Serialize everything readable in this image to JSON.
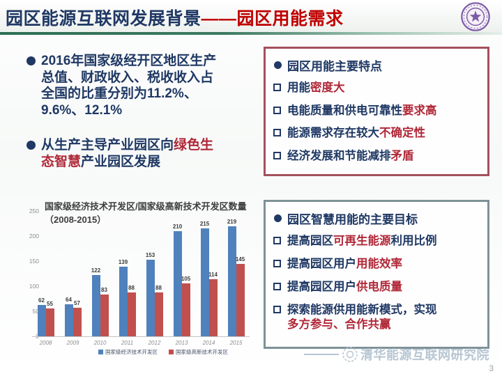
{
  "header": {
    "title_main": "园区能源互联网发展背景",
    "title_dash": "——",
    "title_accent": "园区用能需求",
    "logo_name": "tsinghua-university-seal"
  },
  "left": {
    "bullets": [
      {
        "segments": [
          {
            "text": "2016年国家级经开区地区生产总值、财政收入、税收收入占全国的比重分别为11.2%、9.6%、12.1%",
            "color": "navy"
          }
        ]
      },
      {
        "segments": [
          {
            "text": "从生产主导产业园区向",
            "color": "navy"
          },
          {
            "text": "绿色生态智慧",
            "color": "red"
          },
          {
            "text": "产业园区发展",
            "color": "navy"
          }
        ]
      }
    ]
  },
  "box_top": {
    "title": "园区用能主要特点",
    "items": [
      {
        "segments": [
          {
            "text": "用能",
            "color": "navy"
          },
          {
            "text": "密度大",
            "color": "red"
          }
        ]
      },
      {
        "segments": [
          {
            "text": "电能质量和供电可靠性",
            "color": "navy"
          },
          {
            "text": "要求高",
            "color": "red"
          }
        ]
      },
      {
        "segments": [
          {
            "text": "能源需求存在较大",
            "color": "navy"
          },
          {
            "text": "不确定性",
            "color": "red"
          }
        ]
      },
      {
        "segments": [
          {
            "text": "经济发展和节能减排",
            "color": "navy"
          },
          {
            "text": "矛盾",
            "color": "red"
          }
        ]
      }
    ]
  },
  "box_bottom": {
    "title": "园区智慧用能的主要目标",
    "items": [
      {
        "segments": [
          {
            "text": "提高园区",
            "color": "navy"
          },
          {
            "text": "可再生能源",
            "color": "red"
          },
          {
            "text": "利用比例",
            "color": "navy"
          }
        ]
      },
      {
        "segments": [
          {
            "text": "提高园区用户",
            "color": "navy"
          },
          {
            "text": "用能效率",
            "color": "red"
          }
        ]
      },
      {
        "segments": [
          {
            "text": "提高园区用户",
            "color": "navy"
          },
          {
            "text": "供电质量",
            "color": "red"
          }
        ]
      },
      {
        "segments": [
          {
            "text": "探索能源供用能新模式，实现",
            "color": "navy"
          },
          {
            "text": "\n多方参与、合作共赢",
            "color": "red"
          }
        ]
      }
    ]
  },
  "chart_data": {
    "type": "bar",
    "title": "国家级经济技术开发区/国家级高新技术开发区数量（2008-2015）",
    "categories": [
      "2008",
      "2009",
      "2010",
      "2011",
      "2012",
      "2013",
      "2014",
      "2015"
    ],
    "series": [
      {
        "name": "国家级经济技术开发区",
        "color": "#4F81BD",
        "values": [
          62,
          64,
          122,
          139,
          153,
          210,
          215,
          219
        ]
      },
      {
        "name": "国家级高新技术开发区",
        "color": "#C0504D",
        "values": [
          55,
          57,
          83,
          88,
          88,
          105,
          114,
          145
        ]
      }
    ],
    "xlabel": "",
    "ylabel": "",
    "ylim": [
      0,
      250
    ],
    "yticks": [
      0,
      50,
      100,
      150,
      200,
      250
    ],
    "grid": false,
    "legend_position": "bottom",
    "value_labels": true
  },
  "footer": {
    "watermark": "清华能源互联网研究院",
    "page_number": "3"
  },
  "icons": {
    "bullet": "filled-circle",
    "item_marker": "hollow-square",
    "header_logo": "tsinghua-university-seal",
    "watermark_logo": "dashed-circle-seal"
  },
  "colors": {
    "navy": "#1F3864",
    "red": "#B02838",
    "title_accent": "#C00000",
    "box_top_border": "#A4505C",
    "box_bottom_border": "#7E9297",
    "header_line": "#2C6E54",
    "bar_blue": "#4F81BD",
    "bar_red": "#C0504D",
    "watermark": "#B7C6D3"
  }
}
